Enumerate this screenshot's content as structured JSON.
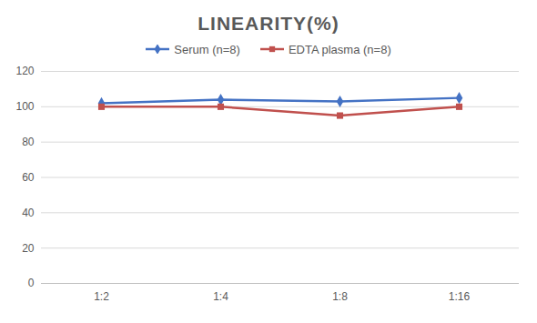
{
  "chart_data": {
    "type": "line",
    "title": "LINEARITY(%)",
    "categories": [
      "1:2",
      "1:4",
      "1:8",
      "1:16"
    ],
    "series": [
      {
        "name": "Serum (n=8)",
        "color": "#4472c4",
        "marker": "diamond",
        "values": [
          102,
          104,
          103,
          105
        ]
      },
      {
        "name": "EDTA plasma (n=8)",
        "color": "#c0504d",
        "marker": "square",
        "values": [
          100,
          100,
          95,
          100
        ]
      }
    ],
    "ylim": [
      0,
      120
    ],
    "yticks": [
      0,
      20,
      40,
      60,
      80,
      100,
      120
    ],
    "grid": true,
    "legend": "top"
  }
}
